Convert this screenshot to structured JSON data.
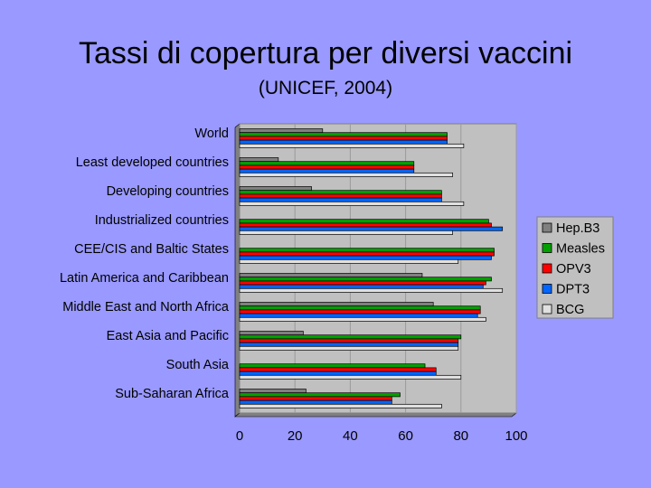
{
  "slide": {
    "title": "Tassi di copertura per diversi vaccini",
    "subtitle": "(UNICEF, 2004)"
  },
  "chart_data": {
    "type": "bar",
    "orientation": "horizontal",
    "categories": [
      "World",
      "Least developed countries",
      "Developing countries",
      "Industrialized countries",
      "CEE/CIS and Baltic States",
      "Latin America and Caribbean",
      "Middle East and North Africa",
      "East Asia and Pacific",
      "South Asia",
      "Sub-Saharan Africa"
    ],
    "series": [
      {
        "name": "Hep.B3",
        "color": "#808080",
        "values": [
          30,
          14,
          26,
          0,
          0,
          66,
          70,
          23,
          0,
          24
        ]
      },
      {
        "name": "Measles",
        "color": "#00a000",
        "values": [
          75,
          63,
          73,
          90,
          92,
          91,
          87,
          80,
          67,
          58
        ]
      },
      {
        "name": "OPV3",
        "color": "#ff0000",
        "values": [
          75,
          63,
          73,
          91,
          92,
          89,
          87,
          79,
          71,
          55
        ]
      },
      {
        "name": "DPT3",
        "color": "#0066ff",
        "values": [
          75,
          63,
          73,
          95,
          91,
          88,
          86,
          79,
          71,
          55
        ]
      },
      {
        "name": "BCG",
        "color": "#e0e0e0",
        "values": [
          81,
          77,
          81,
          77,
          79,
          95,
          89,
          79,
          80,
          73
        ]
      }
    ],
    "xlim": [
      0,
      100
    ],
    "xticks": [
      0,
      20,
      40,
      60,
      80,
      100
    ],
    "grid": true,
    "legend": "right"
  }
}
